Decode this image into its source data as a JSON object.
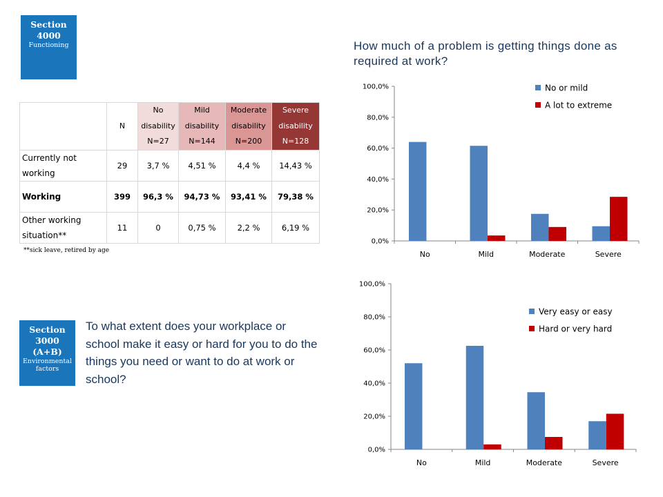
{
  "section_top": {
    "title": "Section",
    "number": "4000",
    "subtitle": "Functioning"
  },
  "section_bottom": {
    "title": "Section",
    "number": "3000",
    "code": "(A+B)",
    "sub1": "Environmental",
    "sub2": "factors"
  },
  "question_top": "How much of a problem is getting things done as required at work?",
  "question_bottom": "To what extent does your workplace or school make it easy or hard for you to do the things you need or want to do at work or school?",
  "table": {
    "headers": [
      {
        "l1": "",
        "l2": "N",
        "l3": ""
      },
      {
        "l1": "No",
        "l2": "disability",
        "l3": "N=27"
      },
      {
        "l1": "Mild",
        "l2": "disability",
        "l3": "N=144"
      },
      {
        "l1": "Moderate",
        "l2": "disability",
        "l3": "N=200"
      },
      {
        "l1": "Severe",
        "l2": "disability",
        "l3": "N=128"
      }
    ],
    "rows": [
      {
        "label": "Currently not working",
        "n": "29",
        "no": "3,7 %",
        "mild": "4,51 %",
        "moderate": "4,4 %",
        "severe": "14,43 %"
      },
      {
        "label": "Working",
        "n": "399",
        "no": "96,3 %",
        "mild": "94,73 %",
        "moderate": "93,41 %",
        "severe": "79,38 %"
      },
      {
        "label": "Other working situation**",
        "n": "11",
        "no": "0",
        "mild": "0,75 %",
        "moderate": "2,2 %",
        "severe": "6,19 %"
      }
    ],
    "footnote": "**sick leave, retired by age"
  },
  "colors": {
    "blue": "#4f81bd",
    "red": "#c00000",
    "section": "#1b75bb",
    "question": "#17375e"
  },
  "chart_data": [
    {
      "type": "bar",
      "categories": [
        "No",
        "Mild",
        "Moderate",
        "Severe"
      ],
      "series": [
        {
          "name": "No or mild",
          "color": "#4f81bd",
          "values": [
            64.0,
            61.5,
            17.5,
            9.5
          ]
        },
        {
          "name": "A lot to extreme",
          "color": "#c00000",
          "values": [
            0,
            3.5,
            9.0,
            28.5
          ]
        }
      ],
      "yticks": [
        "0,0%",
        "20,0%",
        "40,0%",
        "60,0%",
        "80,0%",
        "100,0%"
      ],
      "ylim": [
        0,
        100
      ],
      "legend": "top-right",
      "grid": false
    },
    {
      "type": "bar",
      "categories": [
        "No",
        "Mild",
        "Moderate",
        "Severe"
      ],
      "series": [
        {
          "name": "Very easy or easy",
          "color": "#4f81bd",
          "values": [
            52.0,
            62.5,
            34.5,
            17.0
          ]
        },
        {
          "name": "Hard or very hard",
          "color": "#c00000",
          "values": [
            0,
            3.0,
            7.5,
            21.5
          ]
        }
      ],
      "yticks": [
        "0,0%",
        "20,0%",
        "40,0%",
        "60,0%",
        "80,0%",
        "100,0%"
      ],
      "ylim": [
        0,
        100
      ],
      "legend": "top-right",
      "grid": false
    }
  ]
}
